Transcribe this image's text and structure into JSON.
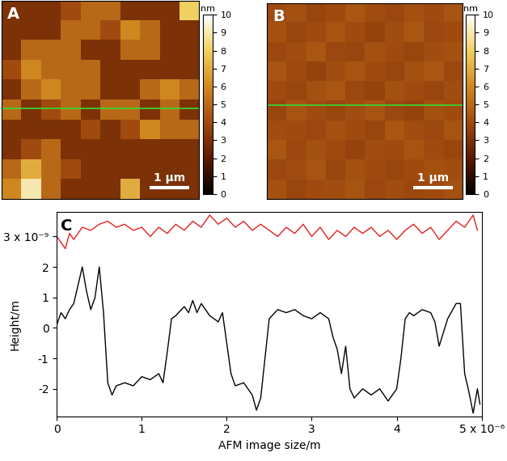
{
  "chart_data": [
    {
      "type": "heatmap",
      "label": "A",
      "tick_labels": false,
      "xlim": [
        0,
        5
      ],
      "ylim": [
        0,
        5
      ],
      "cells": [
        [
          3,
          3,
          3,
          4,
          5,
          5,
          3,
          3,
          3,
          8
        ],
        [
          3,
          3,
          3,
          5,
          5,
          4,
          6,
          5,
          3,
          3
        ],
        [
          3,
          5,
          5,
          5,
          3,
          3,
          5,
          5,
          3,
          3
        ],
        [
          4,
          6,
          5,
          5,
          5,
          3,
          3,
          3,
          3,
          3
        ],
        [
          3,
          5,
          6,
          5,
          5,
          3,
          3,
          5,
          6,
          5
        ],
        [
          5,
          3,
          4,
          5,
          3,
          5,
          5,
          3,
          5,
          3
        ],
        [
          3,
          3,
          3,
          3,
          4,
          3,
          4,
          6,
          5,
          5
        ],
        [
          3,
          4,
          5,
          3,
          3,
          3,
          3,
          3,
          3,
          3
        ],
        [
          5,
          7,
          5,
          4,
          3,
          3,
          3,
          3,
          3,
          3
        ],
        [
          6,
          9,
          5,
          3,
          3,
          3,
          7,
          3,
          3,
          3
        ]
      ],
      "profile": {
        "y": 2.29,
        "color": "#33dd33"
      },
      "scale_bar": {
        "value": 1,
        "label": "1 µm"
      },
      "colorbar": {
        "range": [
          0,
          10
        ],
        "ticks": [
          0,
          1,
          2,
          3,
          4,
          5,
          6,
          7,
          8,
          9,
          10
        ],
        "label": "nm"
      }
    },
    {
      "type": "heatmap",
      "label": "B",
      "tick_labels": false,
      "xlim": [
        0,
        5
      ],
      "ylim": [
        0,
        5
      ],
      "cells": [
        [
          4.0,
          4.2,
          3.8,
          4.0,
          4.4,
          4.1,
          3.9,
          4.2,
          4.0,
          4.3
        ],
        [
          4.2,
          3.8,
          4.0,
          4.3,
          4.0,
          3.7,
          4.1,
          4.4,
          3.9,
          4.0
        ],
        [
          3.9,
          4.1,
          4.4,
          3.9,
          3.8,
          4.2,
          4.0,
          3.8,
          4.1,
          4.2
        ],
        [
          4.3,
          4.0,
          3.7,
          4.1,
          4.3,
          4.0,
          3.8,
          4.2,
          4.4,
          3.9
        ],
        [
          4.0,
          3.8,
          4.2,
          4.4,
          3.9,
          3.7,
          4.2,
          4.0,
          3.8,
          4.1
        ],
        [
          3.8,
          4.3,
          4.0,
          3.8,
          4.1,
          4.3,
          3.9,
          3.7,
          4.2,
          4.0
        ],
        [
          4.1,
          4.0,
          3.9,
          4.2,
          4.0,
          3.8,
          4.4,
          4.1,
          3.9,
          4.3
        ],
        [
          4.4,
          3.9,
          4.2,
          4.0,
          3.7,
          4.1,
          4.0,
          4.3,
          4.0,
          3.8
        ],
        [
          3.9,
          4.1,
          4.3,
          3.8,
          4.2,
          4.0,
          3.8,
          4.0,
          4.2,
          4.1
        ],
        [
          4.2,
          3.8,
          4.0,
          4.1,
          4.3,
          3.9,
          4.1,
          3.9,
          4.0,
          4.2
        ]
      ],
      "profile": {
        "y": 2.39,
        "color": "#33dd33"
      },
      "scale_bar": {
        "value": 1,
        "label": "1 µm"
      },
      "colorbar": {
        "range": [
          0,
          10
        ],
        "ticks": [
          0,
          1,
          2,
          3,
          4,
          5,
          6,
          7,
          8,
          9,
          10
        ],
        "label": "nm"
      }
    },
    {
      "type": "line",
      "label": "C",
      "xlabel": "AFM image size/m",
      "ylabel": "Height/m",
      "xlim": [
        0,
        5
      ],
      "ylim": [
        -2.9,
        3.8
      ],
      "xticks": [
        0,
        1,
        2,
        3,
        4,
        {
          "value": 5,
          "label": "5 x 10⁻⁶"
        }
      ],
      "yticks": [
        -2,
        -1,
        0,
        1,
        2,
        {
          "value": 3,
          "label": "3 x 10⁻⁹"
        }
      ],
      "series": [
        {
          "color": "#e02020",
          "x": [
            0,
            0.05,
            0.1,
            0.15,
            0.2,
            0.3,
            0.4,
            0.5,
            0.6,
            0.7,
            0.8,
            0.9,
            1.0,
            1.1,
            1.2,
            1.3,
            1.4,
            1.5,
            1.6,
            1.7,
            1.8,
            1.9,
            2.0,
            2.1,
            2.2,
            2.3,
            2.4,
            2.5,
            2.6,
            2.7,
            2.8,
            2.9,
            3.0,
            3.1,
            3.2,
            3.3,
            3.4,
            3.5,
            3.6,
            3.7,
            3.8,
            3.9,
            4.0,
            4.1,
            4.2,
            4.3,
            4.4,
            4.5,
            4.6,
            4.7,
            4.8,
            4.9,
            4.95
          ],
          "values": [
            3.0,
            2.8,
            2.6,
            3.1,
            2.9,
            3.3,
            3.2,
            3.4,
            3.5,
            3.3,
            3.4,
            3.2,
            3.3,
            3.0,
            3.3,
            3.1,
            3.4,
            3.2,
            3.5,
            3.3,
            3.7,
            3.4,
            3.6,
            3.3,
            3.5,
            3.2,
            3.4,
            3.2,
            3.0,
            3.3,
            3.1,
            3.4,
            3.0,
            3.3,
            2.9,
            3.2,
            3.0,
            3.3,
            3.1,
            3.3,
            3.0,
            3.2,
            2.9,
            3.2,
            3.4,
            3.1,
            3.3,
            2.9,
            3.2,
            3.5,
            3.3,
            3.7,
            3.2
          ]
        },
        {
          "color": "#000000",
          "x": [
            0,
            0.05,
            0.1,
            0.15,
            0.2,
            0.25,
            0.3,
            0.35,
            0.4,
            0.45,
            0.5,
            0.55,
            0.6,
            0.65,
            0.7,
            0.8,
            0.9,
            1.0,
            1.1,
            1.2,
            1.25,
            1.3,
            1.35,
            1.4,
            1.5,
            1.55,
            1.6,
            1.65,
            1.7,
            1.8,
            1.9,
            1.95,
            2.0,
            2.05,
            2.1,
            2.2,
            2.3,
            2.35,
            2.4,
            2.45,
            2.5,
            2.6,
            2.7,
            2.8,
            2.9,
            3.0,
            3.1,
            3.2,
            3.25,
            3.3,
            3.35,
            3.4,
            3.45,
            3.5,
            3.6,
            3.7,
            3.8,
            3.9,
            4.0,
            4.05,
            4.1,
            4.15,
            4.2,
            4.3,
            4.4,
            4.45,
            4.5,
            4.6,
            4.7,
            4.75,
            4.8,
            4.85,
            4.9,
            4.95,
            4.98
          ],
          "values": [
            0.1,
            0.5,
            0.3,
            0.6,
            0.8,
            1.4,
            2.0,
            1.2,
            0.6,
            1.0,
            2.0,
            0.5,
            -1.8,
            -2.2,
            -1.9,
            -1.8,
            -1.9,
            -1.6,
            -1.7,
            -1.5,
            -1.8,
            -0.8,
            0.3,
            0.4,
            0.7,
            0.5,
            0.9,
            0.5,
            0.8,
            0.4,
            0.2,
            0.5,
            -0.5,
            -1.5,
            -1.9,
            -1.8,
            -2.2,
            -2.7,
            -2.3,
            -1.0,
            0.3,
            0.6,
            0.5,
            0.6,
            0.4,
            0.3,
            0.5,
            0.3,
            -0.3,
            -0.7,
            -1.5,
            -0.6,
            -2.0,
            -2.3,
            -2.0,
            -2.2,
            -2.0,
            -2.4,
            -2.0,
            -1.0,
            0.3,
            0.5,
            0.4,
            0.6,
            0.5,
            0.2,
            -0.6,
            0.3,
            0.8,
            0.8,
            -1.5,
            -2.1,
            -2.8,
            -2.0,
            -2.5
          ]
        }
      ]
    }
  ]
}
